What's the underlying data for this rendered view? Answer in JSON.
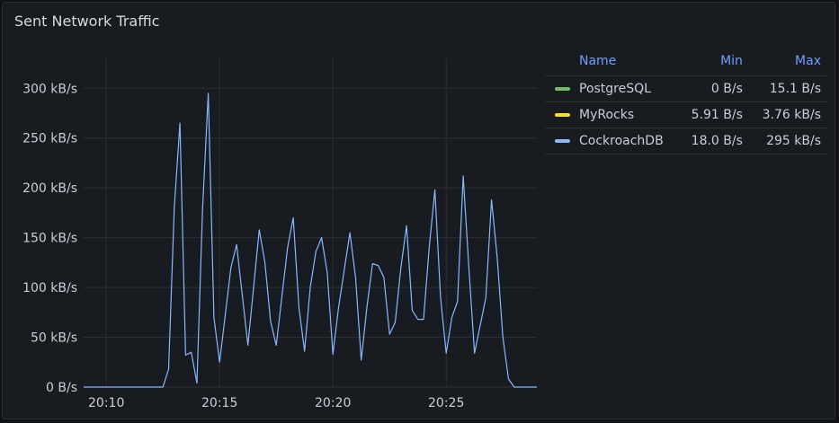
{
  "panel": {
    "title": "Sent Network Traffic"
  },
  "legend": {
    "headers": {
      "name": "Name",
      "min": "Min",
      "max": "Max"
    },
    "rows": [
      {
        "name": "PostgreSQL",
        "color": "#73bf69",
        "min": "0 B/s",
        "max": "15.1 B/s"
      },
      {
        "name": "MyRocks",
        "color": "#fade2a",
        "min": "5.91 B/s",
        "max": "3.76 kB/s"
      },
      {
        "name": "CockroachDB",
        "color": "#8ab8ff",
        "min": "18.0 B/s",
        "max": "295 kB/s"
      }
    ]
  },
  "chart_data": {
    "type": "line",
    "title": "Sent Network Traffic",
    "x_unit": "time (HH:MM)",
    "xlim": [
      "20:09",
      "20:29"
    ],
    "ylim": [
      0,
      330
    ],
    "y_unit": "kB/s",
    "xticks": [
      "20:10",
      "20:15",
      "20:20",
      "20:25"
    ],
    "yticks": [
      "0 B/s",
      "50 kB/s",
      "100 kB/s",
      "150 kB/s",
      "200 kB/s",
      "250 kB/s",
      "300 kB/s"
    ],
    "grid": true,
    "legend_position": "right",
    "series": [
      {
        "name": "CockroachDB",
        "color": "#8ab8ff",
        "points": [
          [
            "20:09",
            0
          ],
          [
            "20:12:30",
            0
          ],
          [
            "20:12:45",
            18
          ],
          [
            "20:13:00",
            180
          ],
          [
            "20:13:15",
            265
          ],
          [
            "20:13:30",
            32
          ],
          [
            "20:13:45",
            35
          ],
          [
            "20:14:00",
            4
          ],
          [
            "20:14:15",
            180
          ],
          [
            "20:14:30",
            295
          ],
          [
            "20:14:45",
            70
          ],
          [
            "20:15:00",
            25
          ],
          [
            "20:15:30",
            120
          ],
          [
            "20:15:45",
            143
          ],
          [
            "20:16:15",
            42
          ],
          [
            "20:16:45",
            158
          ],
          [
            "20:17:00",
            125
          ],
          [
            "20:17:15",
            66
          ],
          [
            "20:17:30",
            42
          ],
          [
            "20:18:00",
            140
          ],
          [
            "20:18:15",
            170
          ],
          [
            "20:18:30",
            80
          ],
          [
            "20:18:45",
            36
          ],
          [
            "20:19:00",
            100
          ],
          [
            "20:19:15",
            136
          ],
          [
            "20:19:30",
            150
          ],
          [
            "20:19:45",
            115
          ],
          [
            "20:20:00",
            33
          ],
          [
            "20:20:15",
            80
          ],
          [
            "20:20:45",
            155
          ],
          [
            "20:21:00",
            110
          ],
          [
            "20:21:15",
            27
          ],
          [
            "20:21:30",
            80
          ],
          [
            "20:21:45",
            124
          ],
          [
            "20:22:00",
            122
          ],
          [
            "20:22:15",
            110
          ],
          [
            "20:22:30",
            53
          ],
          [
            "20:22:45",
            65
          ],
          [
            "20:23:00",
            120
          ],
          [
            "20:23:15",
            162
          ],
          [
            "20:23:30",
            77
          ],
          [
            "20:23:45",
            68
          ],
          [
            "20:24:00",
            68
          ],
          [
            "20:24:15",
            140
          ],
          [
            "20:24:30",
            198
          ],
          [
            "20:24:45",
            90
          ],
          [
            "20:25:00",
            34
          ],
          [
            "20:25:15",
            70
          ],
          [
            "20:25:30",
            86
          ],
          [
            "20:25:45",
            212
          ],
          [
            "20:26:00",
            120
          ],
          [
            "20:26:15",
            34
          ],
          [
            "20:26:45",
            90
          ],
          [
            "20:27:00",
            188
          ],
          [
            "20:27:15",
            130
          ],
          [
            "20:27:30",
            50
          ],
          [
            "20:27:45",
            8
          ],
          [
            "20:28:00",
            0
          ],
          [
            "20:29",
            0
          ]
        ]
      }
    ]
  }
}
